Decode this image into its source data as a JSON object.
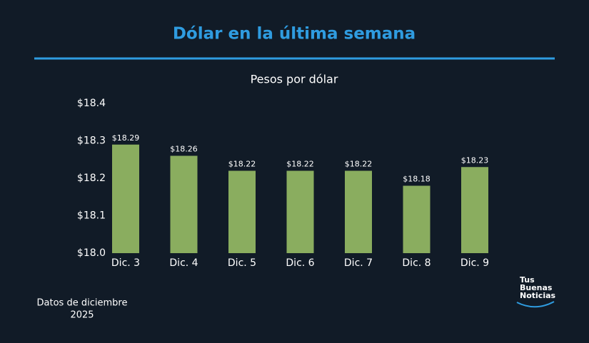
{
  "chart_data": {
    "type": "bar",
    "title": "Dólar en la última semana",
    "subtitle": "Pesos por dólar",
    "categories": [
      "Dic. 3",
      "Dic. 4",
      "Dic. 5",
      "Dic. 6",
      "Dic. 7",
      "Dic. 8",
      "Dic. 9"
    ],
    "values": [
      18.29,
      18.26,
      18.22,
      18.22,
      18.22,
      18.18,
      18.23
    ],
    "value_labels": [
      "$18.29",
      "$18.26",
      "$18.22",
      "$18.22",
      "$18.22",
      "$18.18",
      "$18.23"
    ],
    "color": "#8aad5f",
    "ylim": [
      18.0,
      18.4
    ],
    "yticks": [
      {
        "value": 18.0,
        "label": "$18.0"
      },
      {
        "value": 18.1,
        "label": "$18.1"
      },
      {
        "value": 18.2,
        "label": "$18.2"
      },
      {
        "value": 18.3,
        "label": "$18.3"
      },
      {
        "value": 18.4,
        "label": "$18.4"
      }
    ],
    "grid": false,
    "footnote": [
      "Datos de diciembre",
      "2025"
    ],
    "logo": [
      "Tus",
      "Buenas",
      "Noticias"
    ]
  }
}
